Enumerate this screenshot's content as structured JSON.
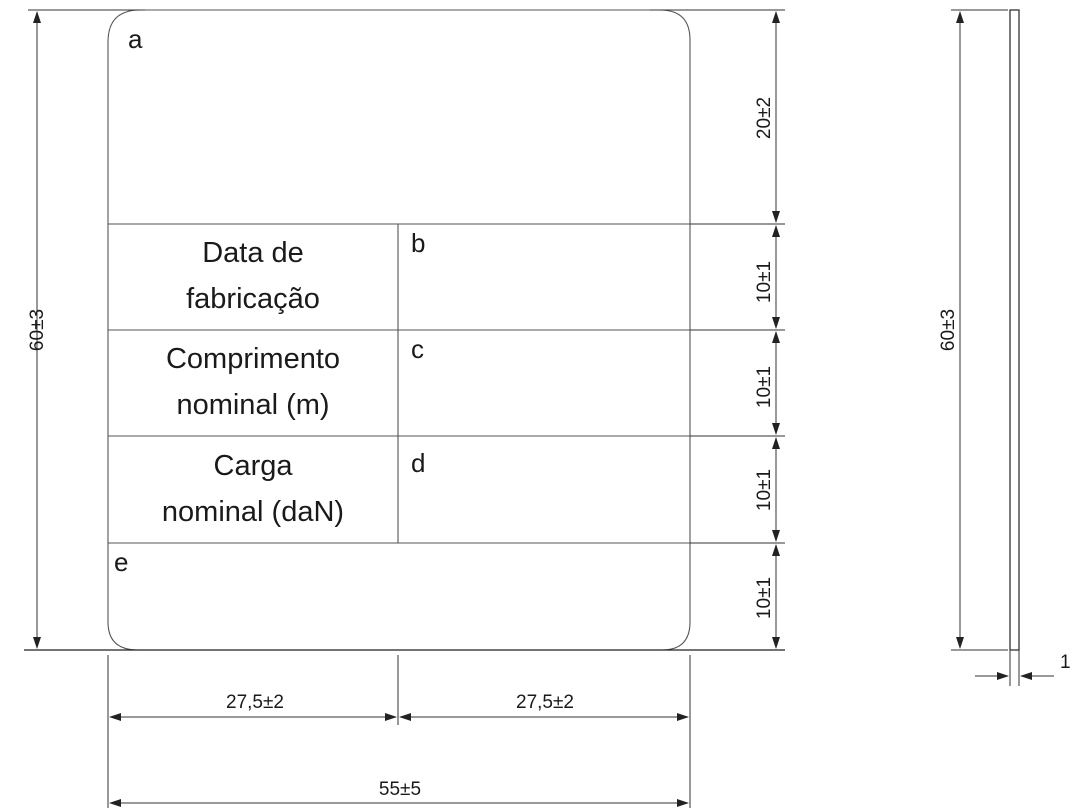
{
  "front_view": {
    "field_letters": {
      "a": "a",
      "b": "b",
      "c": "c",
      "d": "d",
      "e": "e"
    },
    "rows": [
      {
        "label_line1": "Data de",
        "label_line2": "fabricação"
      },
      {
        "label_line1": "Comprimento",
        "label_line2": "nominal (m)"
      },
      {
        "label_line1": "Carga",
        "label_line2": "nominal (daN)"
      }
    ]
  },
  "dimensions": {
    "overall_height": "60±3",
    "row_a_height": "20±2",
    "row_b_height": "10±1",
    "row_c_height": "10±1",
    "row_d_height": "10±1",
    "row_e_height": "10±1",
    "left_half_width": "27,5±2",
    "right_half_width": "27,5±2",
    "overall_width": "55±5",
    "side_height": "60±3",
    "thickness": "1"
  }
}
